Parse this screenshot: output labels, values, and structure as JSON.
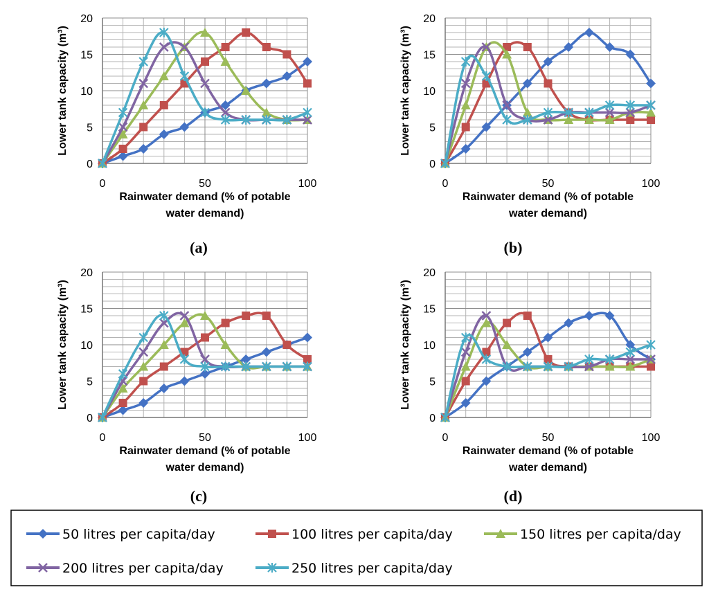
{
  "colors": {
    "s50": "#4472C4",
    "s100": "#C0504D",
    "s150": "#9BBB59",
    "s200": "#8064A2",
    "s250": "#4BACC6",
    "grid": "#b3b3b3",
    "axis": "#777777"
  },
  "legend": {
    "items": [
      {
        "key": "s50",
        "label": "50 litres per capita/day",
        "marker": "diamond"
      },
      {
        "key": "s100",
        "label": "100 litres per capita/day",
        "marker": "square"
      },
      {
        "key": "s150",
        "label": "150 litres per capita/day",
        "marker": "triangle"
      },
      {
        "key": "s200",
        "label": "200 litres per capita/day",
        "marker": "x"
      },
      {
        "key": "s250",
        "label": "250 litres per capita/day",
        "marker": "asterisk"
      }
    ]
  },
  "chart_data": [
    {
      "type": "line",
      "panel_label": "(a)",
      "title": "",
      "xlabel_line1": "Rainwater demand (% of potable",
      "xlabel_line2": "water demand)",
      "ylabel": "Lower tank capacity (m³)",
      "xlim": [
        0,
        100
      ],
      "ylim": [
        0,
        20
      ],
      "xticks": [
        0,
        50,
        100
      ],
      "yticks": [
        0,
        5,
        10,
        15,
        20
      ],
      "grid": true,
      "x": [
        0,
        10,
        20,
        30,
        40,
        50,
        60,
        70,
        80,
        90,
        100
      ],
      "series": [
        {
          "key": "s50",
          "name": "50 litres per capita/day",
          "values": [
            0,
            1,
            2,
            4,
            5,
            7,
            8,
            10,
            11,
            12,
            14
          ]
        },
        {
          "key": "s100",
          "name": "100 litres per capita/day",
          "values": [
            0,
            2,
            5,
            8,
            11,
            14,
            16,
            18,
            16,
            15,
            11
          ]
        },
        {
          "key": "s150",
          "name": "150 litres per capita/day",
          "values": [
            0,
            4,
            8,
            12,
            16,
            18,
            14,
            10,
            7,
            6,
            6
          ]
        },
        {
          "key": "s200",
          "name": "200 litres per capita/day",
          "values": [
            0,
            5,
            11,
            16,
            16,
            11,
            7,
            6,
            6,
            6,
            6
          ]
        },
        {
          "key": "s250",
          "name": "250 litres per capita/day",
          "values": [
            0,
            7,
            14,
            18,
            12,
            7,
            6,
            6,
            6,
            6,
            7
          ]
        }
      ]
    },
    {
      "type": "line",
      "panel_label": "(b)",
      "title": "",
      "xlabel_line1": "Rainwater demand (% of potable",
      "xlabel_line2": "water demand)",
      "ylabel": "Lower tank capacity (m³)",
      "xlim": [
        0,
        100
      ],
      "ylim": [
        0,
        20
      ],
      "xticks": [
        0,
        50,
        100
      ],
      "yticks": [
        0,
        5,
        10,
        15,
        20
      ],
      "grid": true,
      "x": [
        0,
        10,
        20,
        30,
        40,
        50,
        60,
        70,
        80,
        90,
        100
      ],
      "series": [
        {
          "key": "s50",
          "name": "50 litres per capita/day",
          "values": [
            0,
            2,
            5,
            8,
            11,
            14,
            16,
            18,
            16,
            15,
            11
          ]
        },
        {
          "key": "s100",
          "name": "100 litres per capita/day",
          "values": [
            0,
            5,
            11,
            16,
            16,
            11,
            7,
            6,
            6,
            6,
            6
          ]
        },
        {
          "key": "s150",
          "name": "150 litres per capita/day",
          "values": [
            0,
            8,
            16,
            15,
            7,
            6,
            6,
            6,
            6,
            7,
            7
          ]
        },
        {
          "key": "s200",
          "name": "200 litres per capita/day",
          "values": [
            0,
            11,
            16,
            8,
            6,
            6,
            7,
            7,
            7,
            7,
            8
          ]
        },
        {
          "key": "s250",
          "name": "250 litres per capita/day",
          "values": [
            0,
            14,
            12,
            6,
            6,
            7,
            7,
            7,
            8,
            8,
            8
          ]
        }
      ]
    },
    {
      "type": "line",
      "panel_label": "(c)",
      "title": "",
      "xlabel_line1": "Rainwater demand (% of potable",
      "xlabel_line2": "water demand)",
      "ylabel": "Lower tank capacity (m³)",
      "xlim": [
        0,
        100
      ],
      "ylim": [
        0,
        20
      ],
      "xticks": [
        0,
        50,
        100
      ],
      "yticks": [
        0,
        5,
        10,
        15,
        20
      ],
      "grid": true,
      "x": [
        0,
        10,
        20,
        30,
        40,
        50,
        60,
        70,
        80,
        90,
        100
      ],
      "series": [
        {
          "key": "s50",
          "name": "50 litres per capita/day",
          "values": [
            0,
            1,
            2,
            4,
            5,
            6,
            7,
            8,
            9,
            10,
            11
          ]
        },
        {
          "key": "s100",
          "name": "100 litres per capita/day",
          "values": [
            0,
            2,
            5,
            7,
            9,
            11,
            13,
            14,
            14,
            10,
            8
          ]
        },
        {
          "key": "s150",
          "name": "150 litres per capita/day",
          "values": [
            0,
            4,
            7,
            10,
            13,
            14,
            10,
            7,
            7,
            7,
            7
          ]
        },
        {
          "key": "s200",
          "name": "200 litres per capita/day",
          "values": [
            0,
            5,
            9,
            13,
            14,
            8,
            7,
            7,
            7,
            7,
            7
          ]
        },
        {
          "key": "s250",
          "name": "250 litres per capita/day",
          "values": [
            0,
            6,
            11,
            14,
            8,
            7,
            7,
            7,
            7,
            7,
            7
          ]
        }
      ]
    },
    {
      "type": "line",
      "panel_label": "(d)",
      "title": "",
      "xlabel_line1": "Rainwater demand (% of potable",
      "xlabel_line2": "water demand)",
      "ylabel": "Lower tank capacity (m³)",
      "xlim": [
        0,
        100
      ],
      "ylim": [
        0,
        20
      ],
      "xticks": [
        0,
        50,
        100
      ],
      "yticks": [
        0,
        5,
        10,
        15,
        20
      ],
      "grid": true,
      "x": [
        0,
        10,
        20,
        30,
        40,
        50,
        60,
        70,
        80,
        90,
        100
      ],
      "series": [
        {
          "key": "s50",
          "name": "50 litres per capita/day",
          "values": [
            0,
            2,
            5,
            7,
            9,
            11,
            13,
            14,
            14,
            10,
            8
          ]
        },
        {
          "key": "s100",
          "name": "100 litres per capita/day",
          "values": [
            0,
            5,
            9,
            13,
            14,
            8,
            7,
            7,
            7,
            7,
            7
          ]
        },
        {
          "key": "s150",
          "name": "150 litres per capita/day",
          "values": [
            0,
            7,
            13,
            10,
            7,
            7,
            7,
            7,
            7,
            7,
            8
          ]
        },
        {
          "key": "s200",
          "name": "200 litres per capita/day",
          "values": [
            0,
            9,
            14,
            7,
            7,
            7,
            7,
            7,
            8,
            8,
            8
          ]
        },
        {
          "key": "s250",
          "name": "250 litres per capita/day",
          "values": [
            0,
            11,
            8,
            7,
            7,
            7,
            7,
            8,
            8,
            9,
            10
          ]
        }
      ]
    }
  ]
}
